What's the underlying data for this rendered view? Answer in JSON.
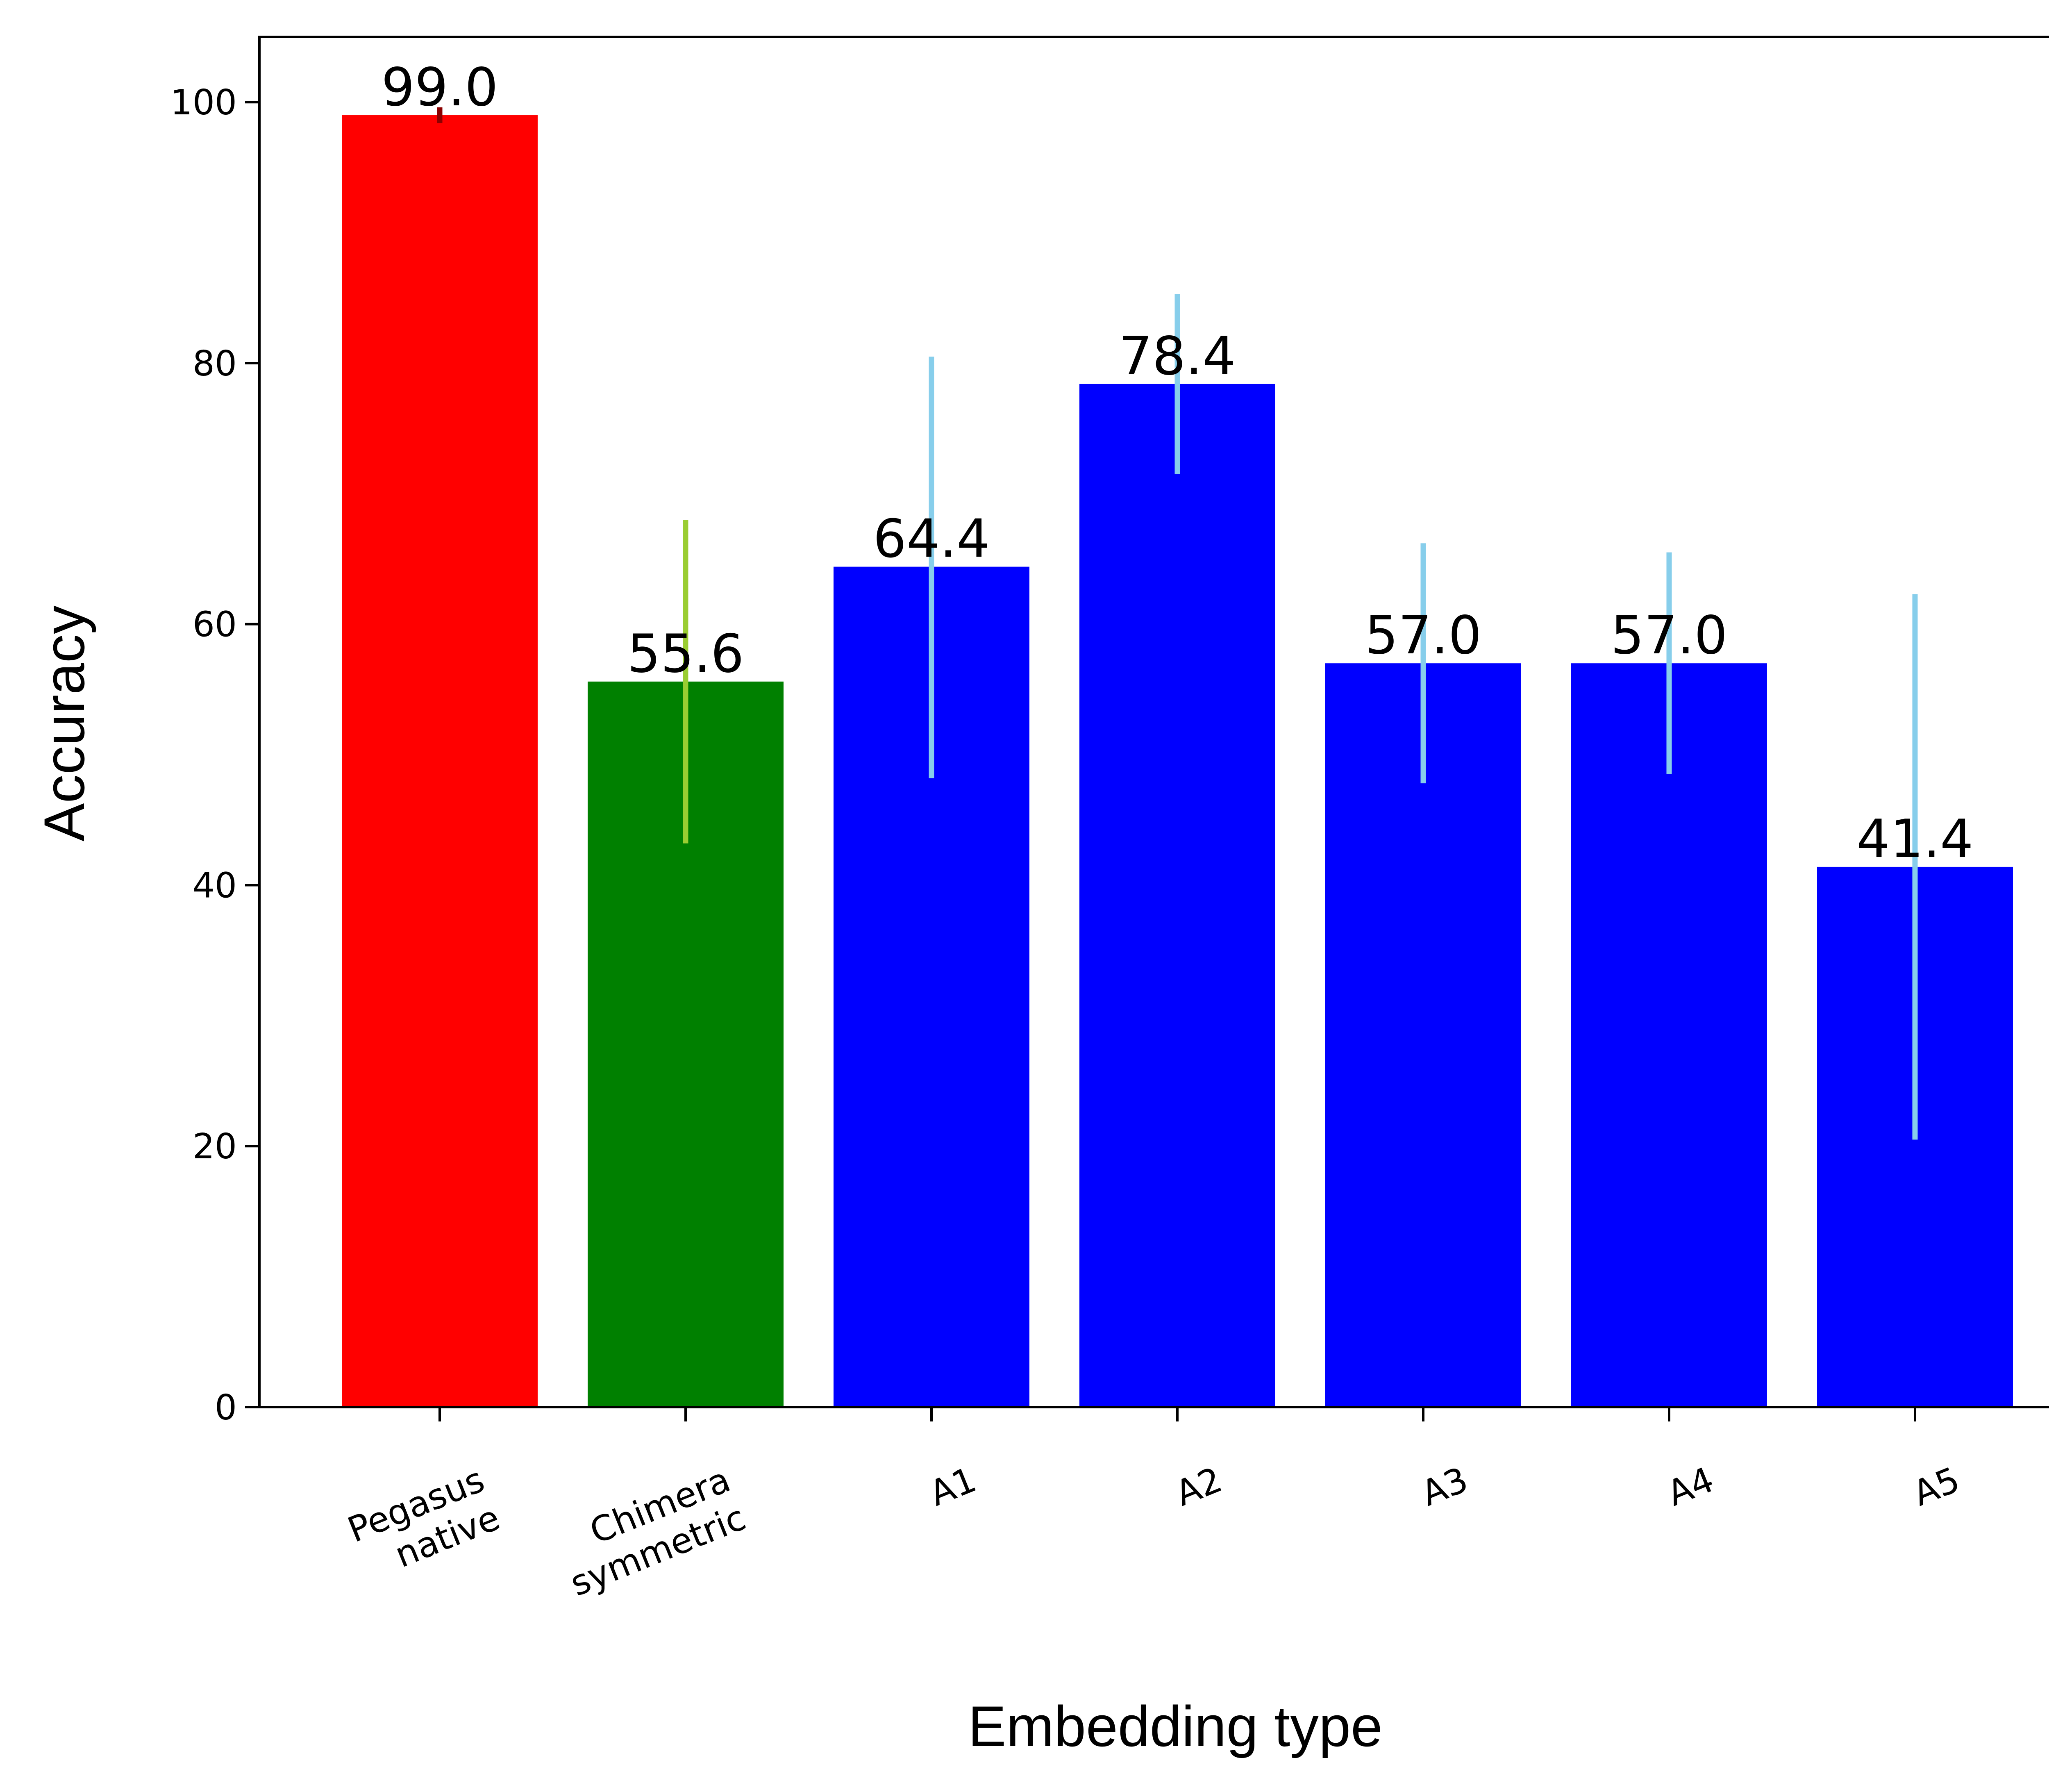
{
  "chart_data": {
    "type": "bar",
    "title": "",
    "xlabel": "Embedding type",
    "ylabel": "Accuracy",
    "ylim": [
      0,
      105
    ],
    "yticks": [
      "0",
      "20",
      "40",
      "60",
      "80",
      "100"
    ],
    "grid": false,
    "legend": "none",
    "categories": [
      [
        "Pegasus",
        "native"
      ],
      [
        "Chimera",
        "symmetric"
      ],
      [
        "A1"
      ],
      [
        "A2"
      ],
      [
        "A3"
      ],
      [
        "A4"
      ],
      [
        "A5"
      ]
    ],
    "values": [
      99.0,
      55.6,
      64.4,
      78.4,
      57.0,
      57.0,
      41.4
    ],
    "value_labels": [
      "99.0",
      "55.6",
      "64.4",
      "78.4",
      "57.0",
      "57.0",
      "41.4"
    ],
    "error_low": [
      98.4,
      43.2,
      48.2,
      71.5,
      47.8,
      48.5,
      20.5
    ],
    "error_high": [
      99.6,
      68.0,
      80.5,
      85.3,
      66.2,
      65.5,
      62.3
    ],
    "bar_colors": [
      "#ff0000",
      "#008000",
      "#0000ff",
      "#0000ff",
      "#0000ff",
      "#0000ff",
      "#0000ff"
    ],
    "error_colors": [
      "#8b0000",
      "#9acd32",
      "#87ceeb",
      "#87ceeb",
      "#87ceeb",
      "#87ceeb",
      "#87ceeb"
    ]
  }
}
